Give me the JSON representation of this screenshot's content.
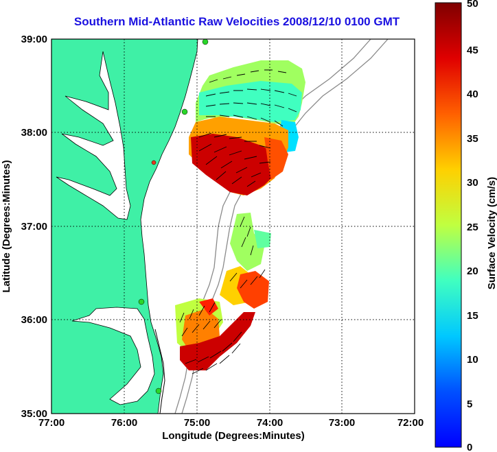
{
  "title": "Southern Mid-Atlantic Raw Velocities 2008/12/10 0100 GMT",
  "x_axis": {
    "label": "Longitude (Degrees:Minutes)",
    "ticks": [
      "77:00",
      "76:00",
      "75:00",
      "74:00",
      "73:00",
      "72:00"
    ]
  },
  "y_axis": {
    "label": "Latitude (Degrees:Minutes)",
    "ticks": [
      "39:00",
      "38:00",
      "37:00",
      "36:00",
      "35:00"
    ]
  },
  "colorbar": {
    "label": "Surface Velocity (cm/s)",
    "ticks": [
      "50",
      "45",
      "40",
      "35",
      "30",
      "25",
      "20",
      "15",
      "10",
      "5",
      "0"
    ],
    "min": 0,
    "max": 50,
    "colormap": "jet"
  },
  "colors": {
    "land": "#3ff0a6",
    "title": "#1a10e0",
    "stations_active": "#2ad62a",
    "station_inactive": "#e83a1e"
  },
  "chart_data": {
    "type": "heatmap",
    "title": "Southern Mid-Atlantic Raw Velocities 2008/12/10 0100 GMT",
    "xlabel": "Longitude (Degrees:Minutes)",
    "ylabel": "Latitude (Degrees:Minutes)",
    "xlim": [
      -77,
      -72
    ],
    "ylim": [
      35,
      39
    ],
    "grid": true,
    "colorbar_label": "Surface Velocity (cm/s)",
    "colorbar_range": [
      0,
      50
    ],
    "stations": [
      {
        "lon": -75.05,
        "lat": 39.0,
        "status": "active"
      },
      {
        "lon": -75.15,
        "lat": 38.2,
        "status": "active"
      },
      {
        "lon": -75.5,
        "lat": 37.7,
        "status": "inactive"
      },
      {
        "lon": -75.75,
        "lat": 36.2,
        "status": "active"
      },
      {
        "lon": -75.55,
        "lat": 35.25,
        "status": "active"
      }
    ],
    "northern_region": {
      "lon_range": [
        -75.1,
        -73.6
      ],
      "lat_range": [
        37.4,
        38.8
      ],
      "speed_range_cm_s": [
        10,
        50
      ],
      "flow": "eastward in the north, turning south-westward in the south"
    },
    "southern_region": {
      "lon_range": [
        -75.3,
        -73.9
      ],
      "lat_range": [
        35.4,
        36.9
      ],
      "speed_range_cm_s": [
        12,
        50
      ],
      "flow": "north-eastward along the shelf"
    }
  }
}
